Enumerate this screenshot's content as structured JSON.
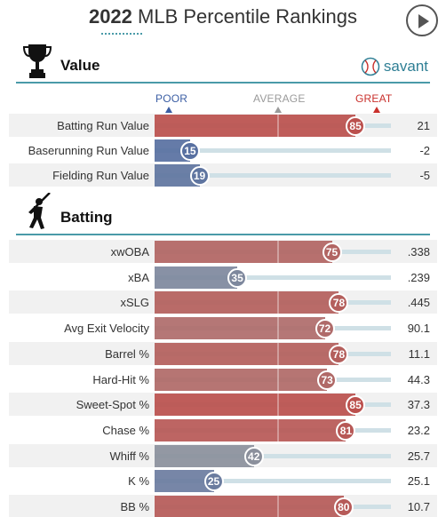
{
  "header": {
    "year": "2022",
    "title_rest": " MLB Percentile Rankings"
  },
  "scale": {
    "poor": "POOR",
    "average": "AVERAGE",
    "great": "GREAT"
  },
  "colors": {
    "poor": "#3b5ea4",
    "average": "#9a9a9a",
    "great": "#c9302c",
    "accent": "#4a9aa8"
  },
  "sections": [
    {
      "title": "Value",
      "icon": "trophy-icon",
      "brand": "savant",
      "rows": [
        {
          "label": "Batting Run Value",
          "percentile": 85,
          "value": "21"
        },
        {
          "label": "Baserunning Run Value",
          "percentile": 15,
          "value": "-2"
        },
        {
          "label": "Fielding Run Value",
          "percentile": 19,
          "value": "-5"
        }
      ]
    },
    {
      "title": "Batting",
      "icon": "batter-icon",
      "rows": [
        {
          "label": "xwOBA",
          "percentile": 75,
          "value": ".338"
        },
        {
          "label": "xBA",
          "percentile": 35,
          "value": ".239"
        },
        {
          "label": "xSLG",
          "percentile": 78,
          "value": ".445"
        },
        {
          "label": "Avg Exit Velocity",
          "percentile": 72,
          "value": "90.1"
        },
        {
          "label": "Barrel %",
          "percentile": 78,
          "value": "11.1"
        },
        {
          "label": "Hard-Hit %",
          "percentile": 73,
          "value": "44.3"
        },
        {
          "label": "Sweet-Spot %",
          "percentile": 85,
          "value": "37.3"
        },
        {
          "label": "Chase %",
          "percentile": 81,
          "value": "23.2"
        },
        {
          "label": "Whiff %",
          "percentile": 42,
          "value": "25.7"
        },
        {
          "label": "K %",
          "percentile": 25,
          "value": "25.1"
        },
        {
          "label": "BB %",
          "percentile": 80,
          "value": "10.7"
        }
      ]
    }
  ]
}
